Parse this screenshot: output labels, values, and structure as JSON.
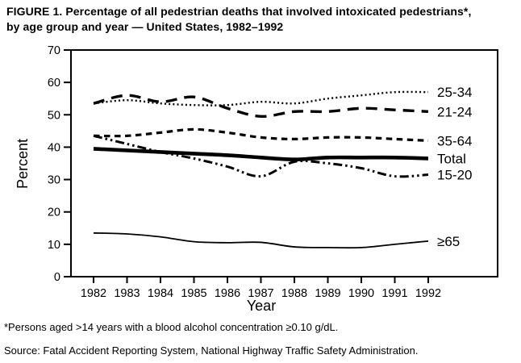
{
  "figure": {
    "title_line1": "FIGURE 1. Percentage of all pedestrian deaths that involved intoxicated pedestrians*,",
    "title_line2": "by age group and year — United States, 1982–1992",
    "footnote": "*Persons aged >14 years with a blood alcohol concentration ≥0.10 g/dL.",
    "source": "Source: Fatal Accident Reporting System, National Highway Traffic Safety Administration."
  },
  "chart_data": {
    "type": "line",
    "title": "",
    "xlabel": "Year",
    "ylabel": "Percent",
    "ylim": [
      0,
      70
    ],
    "yticks": [
      0,
      10,
      20,
      30,
      40,
      50,
      60,
      70
    ],
    "x": [
      1982,
      1983,
      1984,
      1985,
      1986,
      1987,
      1988,
      1989,
      1990,
      1991,
      1992
    ],
    "grid": false,
    "legend_position": "right-of-lines",
    "line_color": "#000000",
    "background": "#ffffff",
    "series": [
      {
        "name": "25-34",
        "style": "dotted",
        "width": 2.4,
        "values": [
          53.5,
          54.5,
          53.5,
          53,
          53,
          54,
          53.5,
          55,
          56,
          57,
          57
        ]
      },
      {
        "name": "21-24",
        "style": "longdash",
        "width": 3.4,
        "values": [
          53.5,
          56,
          54,
          55.5,
          52,
          49.5,
          51,
          51,
          52,
          51.5,
          51
        ]
      },
      {
        "name": "35-64",
        "style": "dash",
        "width": 3.2,
        "values": [
          43.5,
          43.5,
          44.5,
          45.5,
          44.5,
          43,
          42.5,
          43,
          43,
          42.5,
          42
        ]
      },
      {
        "name": "Total",
        "style": "solid",
        "width": 4.6,
        "values": [
          39.5,
          39,
          38.5,
          38,
          37.5,
          36.8,
          36.2,
          36.8,
          36.8,
          36.8,
          36.5
        ]
      },
      {
        "name": "15-20",
        "style": "dashdotdot",
        "width": 3,
        "values": [
          43.5,
          41,
          38.5,
          36.5,
          34,
          31,
          35.5,
          35,
          33.5,
          31,
          31.5
        ]
      },
      {
        "name": "≥65",
        "style": "solid",
        "width": 1.8,
        "values": [
          13.5,
          13.2,
          12.3,
          10.8,
          10.5,
          10.6,
          9.2,
          9,
          9,
          10,
          11
        ]
      }
    ]
  }
}
